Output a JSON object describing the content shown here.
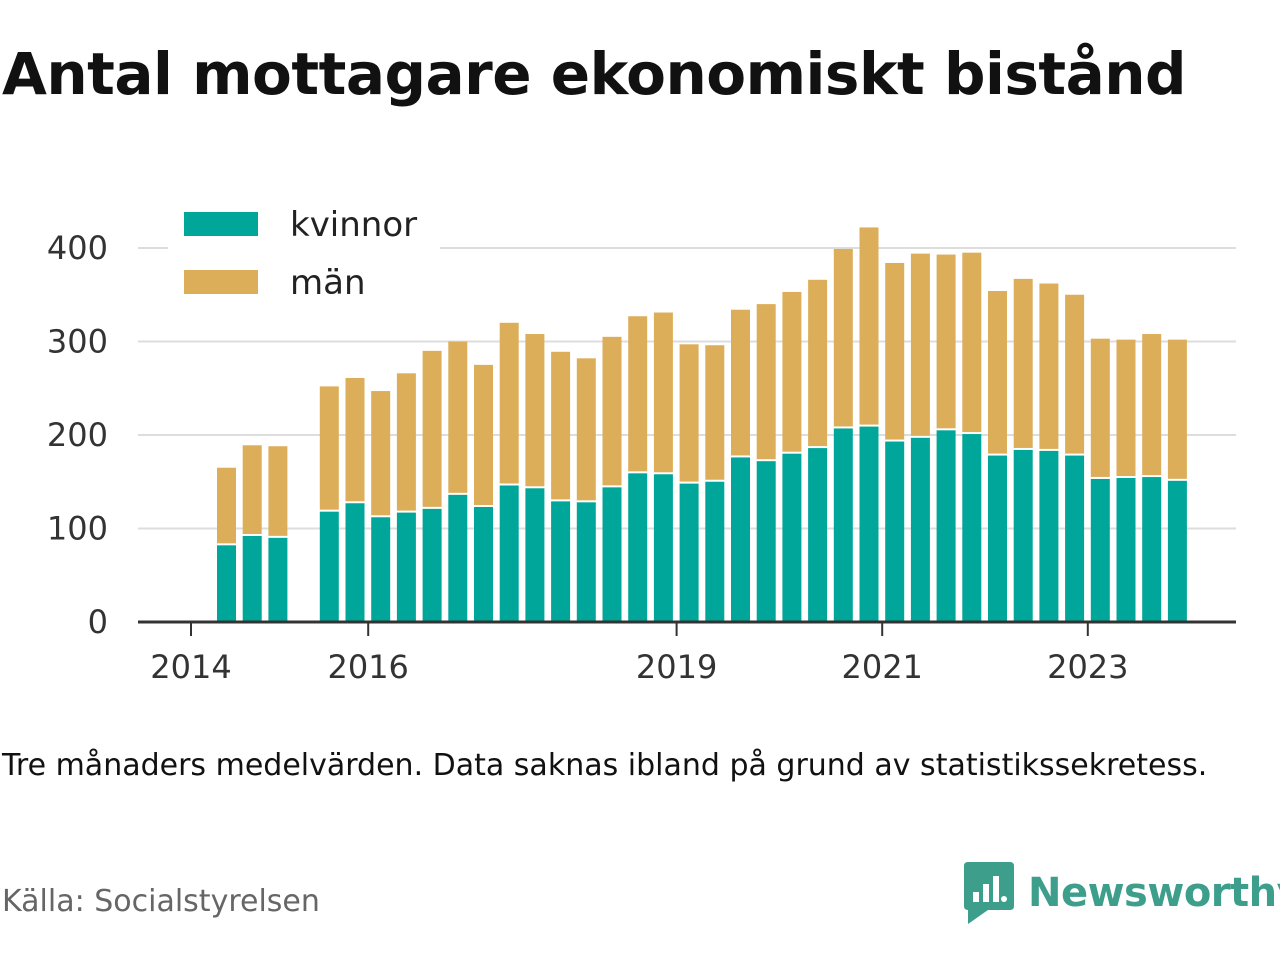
{
  "title": "Antal mottagare ekonomiskt bistånd",
  "note": "Tre månaders medelvärden. Data saknas ibland på grund av statistikssekretess.",
  "source": "Källa: Socialstyrelsen",
  "brand": {
    "name": "Newsworthy",
    "icon": "newsworthy-logo-icon",
    "color": "#3d9e8c"
  },
  "chart_data": {
    "type": "bar",
    "stacked": true,
    "legend_position": "top-left",
    "grid": true,
    "x_tick_labels": [
      "2014",
      "2016",
      "2019",
      "2021",
      "2023"
    ],
    "y_ticks": [
      0,
      100,
      200,
      300,
      400
    ],
    "ylim": [
      0,
      430
    ],
    "series": [
      {
        "name": "kvinnor",
        "color": "#00a699"
      },
      {
        "name": "män",
        "color": "#dcae5a"
      }
    ],
    "bars": [
      {
        "period": "2014 Q3",
        "kvinnor": 82,
        "män": 83
      },
      {
        "period": "2014 Q4",
        "kvinnor": 92,
        "män": 97
      },
      {
        "period": "2015 Q1",
        "kvinnor": 90,
        "män": 98
      },
      {
        "period": "2015 Q2",
        "kvinnor": null,
        "män": null
      },
      {
        "period": "2015 Q3",
        "kvinnor": 118,
        "män": 134
      },
      {
        "period": "2015 Q4",
        "kvinnor": 127,
        "män": 134
      },
      {
        "period": "2016 Q1",
        "kvinnor": 112,
        "män": 135
      },
      {
        "period": "2016 Q2",
        "kvinnor": 117,
        "män": 149
      },
      {
        "period": "2016 Q3",
        "kvinnor": 121,
        "män": 169
      },
      {
        "period": "2016 Q4",
        "kvinnor": 136,
        "män": 164
      },
      {
        "period": "2017 Q1",
        "kvinnor": 123,
        "män": 152
      },
      {
        "period": "2017 Q2",
        "kvinnor": 146,
        "män": 174
      },
      {
        "period": "2017 Q3",
        "kvinnor": 143,
        "män": 165
      },
      {
        "period": "2017 Q4",
        "kvinnor": 129,
        "män": 160
      },
      {
        "period": "2018 Q1",
        "kvinnor": 128,
        "män": 154
      },
      {
        "period": "2018 Q2",
        "kvinnor": 144,
        "män": 161
      },
      {
        "period": "2018 Q3",
        "kvinnor": 159,
        "män": 168
      },
      {
        "period": "2018 Q4",
        "kvinnor": 158,
        "män": 173
      },
      {
        "period": "2019 Q1",
        "kvinnor": 148,
        "män": 149
      },
      {
        "period": "2019 Q2",
        "kvinnor": 150,
        "män": 146
      },
      {
        "period": "2019 Q3",
        "kvinnor": 176,
        "män": 158
      },
      {
        "period": "2019 Q4",
        "kvinnor": 172,
        "män": 168
      },
      {
        "period": "2020 Q1",
        "kvinnor": 180,
        "män": 173
      },
      {
        "period": "2020 Q2",
        "kvinnor": 186,
        "män": 180
      },
      {
        "period": "2020 Q3",
        "kvinnor": 207,
        "män": 192
      },
      {
        "period": "2020 Q4",
        "kvinnor": 209,
        "män": 213
      },
      {
        "period": "2021 Q1",
        "kvinnor": 193,
        "män": 191
      },
      {
        "period": "2021 Q2",
        "kvinnor": 197,
        "män": 197
      },
      {
        "period": "2021 Q3",
        "kvinnor": 205,
        "män": 188
      },
      {
        "period": "2021 Q4",
        "kvinnor": 201,
        "män": 194
      },
      {
        "period": "2022 Q1",
        "kvinnor": 178,
        "män": 176
      },
      {
        "period": "2022 Q2",
        "kvinnor": 184,
        "män": 183
      },
      {
        "period": "2022 Q3",
        "kvinnor": 183,
        "män": 179
      },
      {
        "period": "2022 Q4",
        "kvinnor": 178,
        "män": 172
      },
      {
        "period": "2023 Q1",
        "kvinnor": 153,
        "män": 150
      },
      {
        "period": "2023 Q2",
        "kvinnor": 154,
        "män": 148
      },
      {
        "period": "2023 Q3",
        "kvinnor": 155,
        "män": 153
      },
      {
        "period": "2023 Q4",
        "kvinnor": 151,
        "män": 151
      }
    ]
  }
}
